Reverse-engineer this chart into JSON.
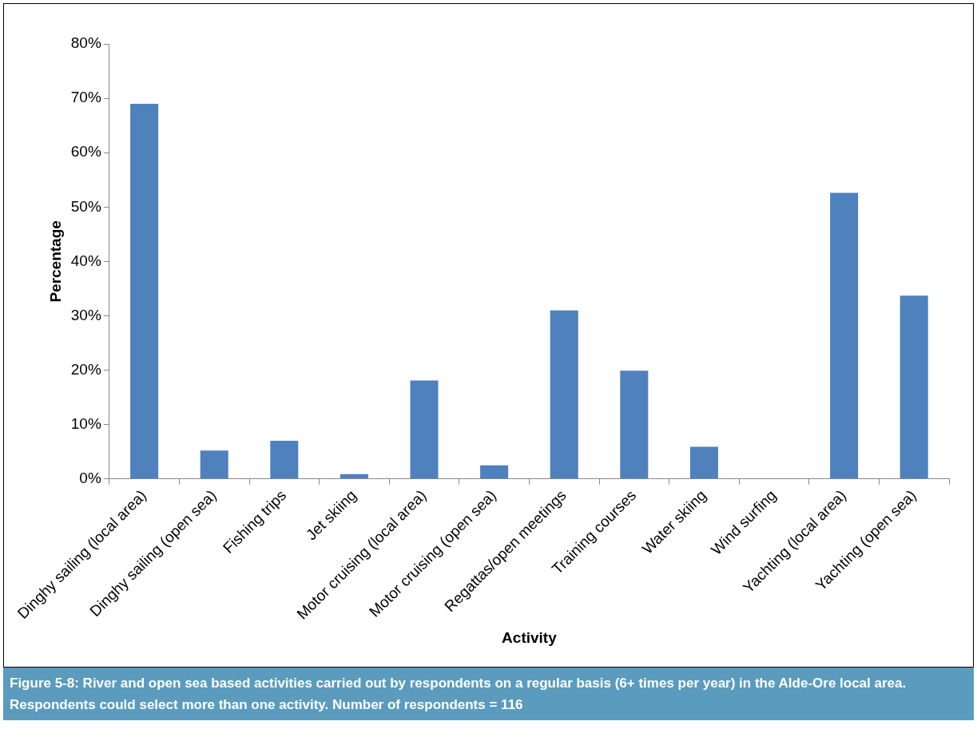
{
  "chart_data": {
    "type": "bar",
    "xlabel": "Activity",
    "ylabel": "Percentage",
    "categories": [
      "Dinghy sailing (local area)",
      "Dinghy sailing (open sea)",
      "Fishing trips",
      "Jet skiing",
      "Motor cruising (local area)",
      "Motor cruising (open sea)",
      "Regattas/open meetings",
      "Training courses",
      "Water skiing",
      "Wind surfing",
      "Yachting (local area)",
      "Yachting (open sea)"
    ],
    "values": [
      69,
      5.2,
      7,
      0.9,
      18.1,
      2.5,
      31,
      19.9,
      5.9,
      0,
      52.6,
      33.7
    ],
    "color": "#4f81bd",
    "ylim": [
      0,
      80
    ],
    "yticks": [
      {
        "value": 0,
        "label": "0%"
      },
      {
        "value": 10,
        "label": "10%"
      },
      {
        "value": 20,
        "label": "20%"
      },
      {
        "value": 30,
        "label": "30%"
      },
      {
        "value": 40,
        "label": "40%"
      },
      {
        "value": 50,
        "label": "50%"
      },
      {
        "value": 60,
        "label": "60%"
      },
      {
        "value": 70,
        "label": "70%"
      },
      {
        "value": 80,
        "label": "80%"
      }
    ],
    "grid": false,
    "legend": false,
    "annotations": [
      "Figure 5-8:  River and open sea based activities carried out by respondents on a regular basis (6+ times per year) in the Alde-Ore local area.  Respondents could select more than one activity.  Number of respondents = 116"
    ]
  }
}
